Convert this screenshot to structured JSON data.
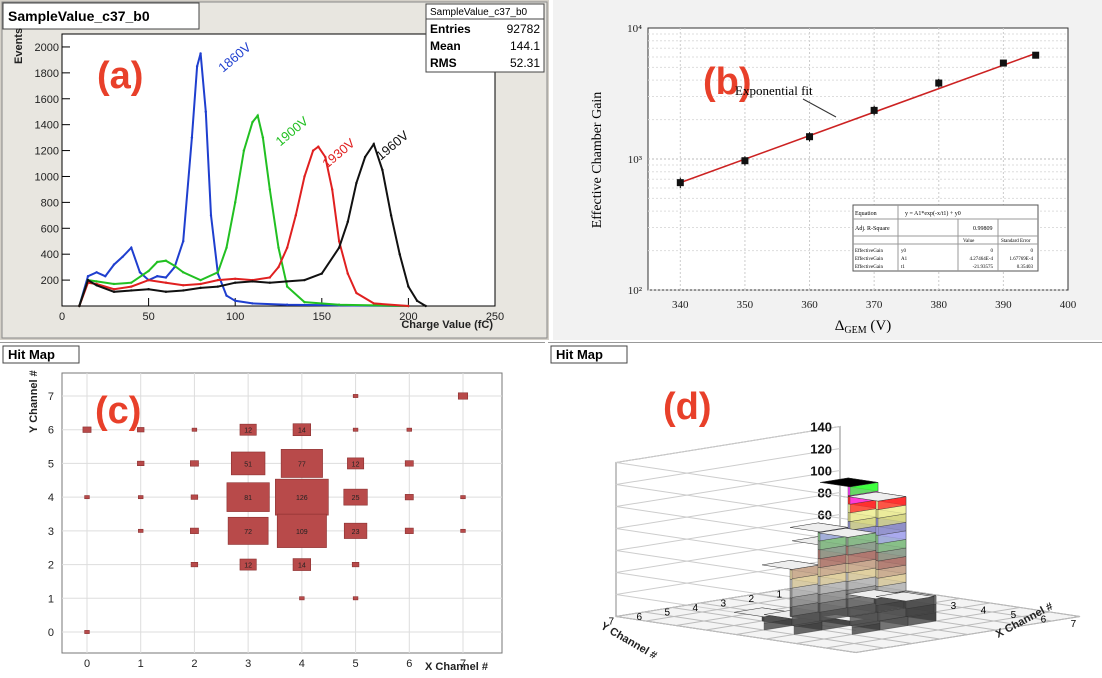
{
  "colors": {
    "v1860": "#1f3fcf",
    "v1900": "#22c022",
    "v1930": "#e02020",
    "v1960": "#111111",
    "panel_letter": "#e8402a",
    "fit": "#cc2222",
    "box": "#b84a4a"
  },
  "panel_a": {
    "title": "SampleValue_c37_b0",
    "label": "(a)",
    "stats": {
      "name": "SampleValue_c37_b0",
      "rows": [
        {
          "k": "Entries",
          "v": "92782"
        },
        {
          "k": "Mean",
          "v": "144.1"
        },
        {
          "k": "RMS",
          "v": "52.31"
        }
      ]
    },
    "ylabel": "Events",
    "xlabel": "Charge Value (fC)"
  },
  "panel_b": {
    "label": "(b)",
    "ylabel": "Effective Chamber Gain",
    "xlabel_main": "Δ",
    "xlabel_sub": "GEM",
    "xlabel_unit": " (V)",
    "fit_label": "Exponential fit",
    "fit_table": {
      "title": "Equation",
      "eq": "y = A1*exp(-x/t1) + y0",
      "r2_label": "Adj. R-Square",
      "r2": "0.99809",
      "col_value": "Value",
      "col_err": "Standard Error",
      "rows": [
        {
          "n": "EffectiveGain",
          "p": "y0",
          "v": "0",
          "e": "0"
        },
        {
          "n": "EffectiveGain",
          "p": "A1",
          "v": "4.27464E-4",
          "e": "1.67769E-4"
        },
        {
          "n": "EffectiveGain",
          "p": "t1",
          "v": "-21.93575",
          "e": "0.35403"
        }
      ]
    }
  },
  "panel_c": {
    "title": "Hit Map",
    "label": "(c)",
    "xlabel": "X Channel #",
    "ylabel": "Y Channel #"
  },
  "panel_d": {
    "title": "Hit Map",
    "label": "(d)",
    "xlabel": "X Channel #",
    "ylabel": "Y Channel #"
  },
  "chart_data": [
    {
      "type": "line",
      "title": "SampleValue_c37_b0",
      "xlabel": "Charge Value (fC)",
      "ylabel": "Events",
      "xlim": [
        0,
        250
      ],
      "ylim": [
        0,
        2100
      ],
      "x_ticks": [
        0,
        50,
        100,
        150,
        200,
        250
      ],
      "y_ticks": [
        200,
        400,
        600,
        800,
        1000,
        1200,
        1400,
        1600,
        1800,
        2000
      ],
      "grid": false,
      "series": [
        {
          "name": "1860V",
          "color": "#1f3fcf",
          "peak_label_pos": [
            93,
            1800
          ],
          "x": [
            10,
            15,
            20,
            25,
            30,
            35,
            40,
            45,
            50,
            55,
            60,
            65,
            70,
            75,
            78,
            80,
            83,
            86,
            90,
            95,
            100,
            110,
            130,
            160,
            200
          ],
          "y": [
            0,
            230,
            260,
            230,
            320,
            380,
            450,
            260,
            200,
            230,
            220,
            300,
            500,
            1300,
            1850,
            1950,
            1500,
            700,
            250,
            80,
            40,
            20,
            10,
            5,
            0
          ]
        },
        {
          "name": "1900V",
          "color": "#22c022",
          "peak_label_pos": [
            126,
            1230
          ],
          "x": [
            10,
            15,
            20,
            30,
            40,
            50,
            55,
            60,
            65,
            70,
            80,
            90,
            95,
            100,
            105,
            110,
            113,
            116,
            120,
            125,
            130,
            140,
            160,
            200
          ],
          "y": [
            0,
            200,
            190,
            170,
            180,
            270,
            340,
            350,
            310,
            260,
            200,
            260,
            450,
            800,
            1200,
            1420,
            1470,
            1300,
            900,
            450,
            150,
            30,
            10,
            0
          ]
        },
        {
          "name": "1930V",
          "color": "#e02020",
          "peak_label_pos": [
            153,
            1060
          ],
          "x": [
            10,
            15,
            20,
            30,
            40,
            50,
            60,
            70,
            80,
            90,
            100,
            110,
            120,
            125,
            130,
            135,
            140,
            145,
            148,
            152,
            156,
            160,
            165,
            170,
            180,
            200
          ],
          "y": [
            0,
            180,
            170,
            130,
            150,
            200,
            180,
            160,
            170,
            200,
            210,
            200,
            220,
            300,
            450,
            700,
            1000,
            1200,
            1230,
            1150,
            900,
            500,
            250,
            100,
            20,
            0
          ]
        },
        {
          "name": "1960V",
          "color": "#111111",
          "peak_label_pos": [
            184,
            1120
          ],
          "x": [
            10,
            15,
            20,
            30,
            40,
            50,
            60,
            70,
            80,
            90,
            100,
            110,
            120,
            130,
            140,
            150,
            160,
            165,
            170,
            175,
            180,
            185,
            190,
            195,
            200,
            205,
            210
          ],
          "y": [
            0,
            200,
            160,
            110,
            120,
            130,
            110,
            120,
            140,
            150,
            180,
            190,
            180,
            190,
            200,
            250,
            450,
            650,
            950,
            1150,
            1250,
            1050,
            700,
            400,
            150,
            40,
            0
          ]
        }
      ]
    },
    {
      "type": "scatter",
      "xlabel": "ΔGEM (V)",
      "ylabel": "Effective Chamber Gain",
      "xlim": [
        335,
        400
      ],
      "ylim": [
        100,
        10000
      ],
      "y_scale": "log",
      "x_ticks": [
        340,
        350,
        360,
        370,
        380,
        390,
        400
      ],
      "y_ticks_labels": [
        "10²",
        "10³",
        "10⁴"
      ],
      "grid": true,
      "series": [
        {
          "name": "data",
          "x": [
            340,
            350,
            360,
            370,
            380,
            390,
            395
          ],
          "y": [
            660,
            970,
            1480,
            2350,
            3800,
            5400,
            6200
          ],
          "err": [
            60,
            80,
            120,
            200,
            300,
            250,
            250
          ]
        },
        {
          "name": "Exponential fit",
          "type": "line",
          "x": [
            340,
            395
          ],
          "y": [
            660,
            6400
          ]
        }
      ]
    },
    {
      "type": "heatmap",
      "title": "Hit Map",
      "xlabel": "X Channel #",
      "ylabel": "Y Channel #",
      "xlim": [
        -0.5,
        7.5
      ],
      "ylim": [
        -0.5,
        7.5
      ],
      "x_ticks": [
        0,
        1,
        2,
        3,
        4,
        5,
        6,
        7
      ],
      "y_ticks": [
        0,
        1,
        2,
        3,
        4,
        5,
        6,
        7
      ],
      "cells": [
        {
          "x": 3,
          "y": 6,
          "v": 12,
          "label": "12"
        },
        {
          "x": 4,
          "y": 6,
          "v": 14,
          "label": "14"
        },
        {
          "x": 3,
          "y": 5,
          "v": 51,
          "label": "51"
        },
        {
          "x": 4,
          "y": 5,
          "v": 77,
          "label": "77"
        },
        {
          "x": 5,
          "y": 5,
          "v": 12,
          "label": "12"
        },
        {
          "x": 3,
          "y": 4,
          "v": 81,
          "label": "81"
        },
        {
          "x": 4,
          "y": 4,
          "v": 126,
          "label": "126"
        },
        {
          "x": 5,
          "y": 4,
          "v": 25,
          "label": "25"
        },
        {
          "x": 3,
          "y": 3,
          "v": 72,
          "label": "72"
        },
        {
          "x": 4,
          "y": 3,
          "v": 109,
          "label": "109"
        },
        {
          "x": 5,
          "y": 3,
          "v": 23,
          "label": "23"
        },
        {
          "x": 3,
          "y": 2,
          "v": 12,
          "label": "12"
        },
        {
          "x": 4,
          "y": 2,
          "v": 14,
          "label": "14"
        },
        {
          "x": 0,
          "y": 6,
          "v": 3
        },
        {
          "x": 1,
          "y": 6,
          "v": 2
        },
        {
          "x": 2,
          "y": 6,
          "v": 1
        },
        {
          "x": 5,
          "y": 6,
          "v": 1
        },
        {
          "x": 6,
          "y": 6,
          "v": 1
        },
        {
          "x": 1,
          "y": 5,
          "v": 2
        },
        {
          "x": 2,
          "y": 5,
          "v": 3
        },
        {
          "x": 6,
          "y": 5,
          "v": 3
        },
        {
          "x": 0,
          "y": 4,
          "v": 1
        },
        {
          "x": 1,
          "y": 4,
          "v": 1
        },
        {
          "x": 2,
          "y": 4,
          "v": 2
        },
        {
          "x": 6,
          "y": 4,
          "v": 3
        },
        {
          "x": 7,
          "y": 4,
          "v": 1
        },
        {
          "x": 1,
          "y": 3,
          "v": 1
        },
        {
          "x": 2,
          "y": 3,
          "v": 3
        },
        {
          "x": 6,
          "y": 3,
          "v": 3
        },
        {
          "x": 7,
          "y": 3,
          "v": 1
        },
        {
          "x": 2,
          "y": 2,
          "v": 2
        },
        {
          "x": 5,
          "y": 2,
          "v": 2
        },
        {
          "x": 4,
          "y": 1,
          "v": 1
        },
        {
          "x": 5,
          "y": 1,
          "v": 1
        },
        {
          "x": 0,
          "y": 0,
          "v": 1
        },
        {
          "x": 7,
          "y": 7,
          "v": 4
        },
        {
          "x": 5,
          "y": 7,
          "v": 1
        }
      ]
    },
    {
      "type": "bar",
      "subtype": "lego3d",
      "title": "Hit Map",
      "xlabel": "X Channel #",
      "ylabel": "Y Channel #",
      "zlim": [
        0,
        140
      ],
      "z_ticks": [
        0,
        20,
        40,
        60,
        80,
        100,
        120,
        140
      ],
      "x_ticks": [
        0,
        1,
        2,
        3,
        4,
        5,
        6,
        7
      ],
      "y_ticks": [
        0,
        1,
        2,
        3,
        4,
        5,
        6,
        7
      ],
      "bars": [
        {
          "x": 4,
          "y": 4,
          "v": 126
        },
        {
          "x": 4,
          "y": 3,
          "v": 109
        },
        {
          "x": 3,
          "y": 4,
          "v": 81
        },
        {
          "x": 4,
          "y": 5,
          "v": 77
        },
        {
          "x": 3,
          "y": 3,
          "v": 72
        },
        {
          "x": 3,
          "y": 5,
          "v": 51
        },
        {
          "x": 5,
          "y": 4,
          "v": 25
        },
        {
          "x": 5,
          "y": 3,
          "v": 23
        },
        {
          "x": 3,
          "y": 6,
          "v": 12
        },
        {
          "x": 4,
          "y": 6,
          "v": 14
        },
        {
          "x": 3,
          "y": 2,
          "v": 12
        },
        {
          "x": 4,
          "y": 2,
          "v": 14
        },
        {
          "x": 5,
          "y": 5,
          "v": 12
        }
      ]
    }
  ]
}
